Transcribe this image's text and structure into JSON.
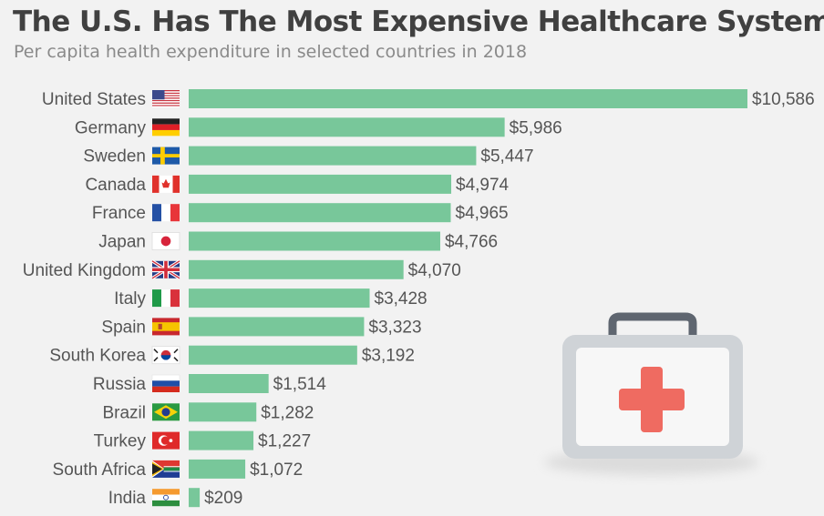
{
  "header": {
    "title": "The U.S. Has The Most Expensive Healthcare System",
    "subtitle": "Per capita health expenditure in selected countries in 2018"
  },
  "colors": {
    "bar": "#78c79a",
    "label": "#555555",
    "background": "#f2f2f2"
  },
  "chart_data": {
    "type": "bar",
    "orientation": "horizontal",
    "title": "The U.S. Has The Most Expensive Healthcare System",
    "subtitle": "Per capita health expenditure in selected countries in 2018",
    "categories": [
      "United States",
      "Germany",
      "Sweden",
      "Canada",
      "France",
      "Japan",
      "United Kingdom",
      "Italy",
      "Spain",
      "South Korea",
      "Russia",
      "Brazil",
      "Turkey",
      "South Africa",
      "India"
    ],
    "values": [
      10586,
      5986,
      5447,
      4974,
      4965,
      4766,
      4070,
      3428,
      3323,
      3192,
      1514,
      1282,
      1227,
      1072,
      209
    ],
    "value_labels": [
      "$10,586",
      "$5,986",
      "$5,447",
      "$4,974",
      "$4,965",
      "$4,766",
      "$4,070",
      "$3,428",
      "$3,323",
      "$3,192",
      "$1,514",
      "$1,282",
      "$1,227",
      "$1,072",
      "$209"
    ],
    "flags": [
      "us-flag-icon",
      "germany-flag-icon",
      "sweden-flag-icon",
      "canada-flag-icon",
      "france-flag-icon",
      "japan-flag-icon",
      "uk-flag-icon",
      "italy-flag-icon",
      "spain-flag-icon",
      "south-korea-flag-icon",
      "russia-flag-icon",
      "brazil-flag-icon",
      "turkey-flag-icon",
      "south-africa-flag-icon",
      "india-flag-icon"
    ],
    "xlim": [
      0,
      10586
    ],
    "grid": false,
    "legend": "none"
  },
  "illustration": {
    "icon": "first-aid-kit-icon"
  }
}
